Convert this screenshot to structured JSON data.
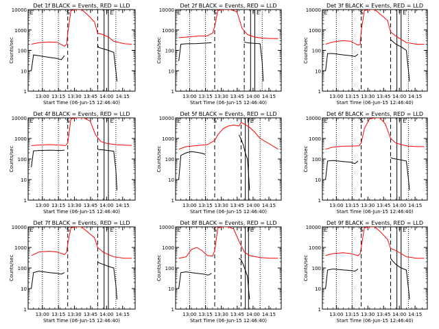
{
  "chart_data": {
    "type": "line",
    "layout": "3x3 grid of rate plots",
    "xlabel": "Start Time (06-Jun-15 12:46:40)",
    "ylabel": "Counts/sec",
    "y_scale": "log",
    "ylim": [
      1,
      10000
    ],
    "y_ticks": [
      "1",
      "10",
      "100",
      "1000",
      "10000"
    ],
    "xlim_minutes": [
      0,
      100
    ],
    "x_ticks": [
      {
        "label": "13:00",
        "min": 13.33
      },
      {
        "label": "13:15",
        "min": 28.33
      },
      {
        "label": "13:30",
        "min": 43.33
      },
      {
        "label": "13:45",
        "min": 58.33
      },
      {
        "label": "14:00",
        "min": 73.33
      },
      {
        "label": "14:15",
        "min": 88.33
      }
    ],
    "legend": "BLACK = Events, RED = LLD",
    "markers": [
      "E",
      "S",
      "F",
      "E"
    ],
    "panels": [
      {
        "title": "Det 1f BLACK = Events, RED = LLD",
        "vlines": [
          {
            "min": 13.3,
            "style": "dotted"
          },
          {
            "min": 28.3,
            "style": "dotted"
          },
          {
            "min": 37,
            "style": "dashed"
          },
          {
            "min": 65,
            "style": "dashed"
          },
          {
            "min": 71,
            "style": "solid"
          },
          {
            "min": 75,
            "style": "solid"
          },
          {
            "min": 82,
            "style": "dotted"
          }
        ],
        "lld": {
          "name": "LLD",
          "x": [
            3,
            10,
            20,
            27,
            34,
            36,
            37,
            40,
            45,
            50,
            55,
            62,
            65,
            70,
            75,
            80,
            90,
            97
          ],
          "y": [
            200,
            240,
            260,
            250,
            160,
            200,
            700,
            9000,
            10000,
            10000,
            6000,
            2500,
            700,
            600,
            450,
            280,
            210,
            200
          ]
        },
        "events": {
          "name": "Events",
          "x": [
            3,
            5,
            10,
            15,
            20,
            27,
            31,
            34
          ],
          "y": [
            10,
            60,
            55,
            50,
            45,
            40,
            35,
            55
          ],
          "x2": [
            65,
            66,
            70,
            75,
            80,
            82,
            83
          ],
          "y2": [
            180,
            140,
            120,
            100,
            80,
            10,
            3
          ]
        }
      },
      {
        "title": "Det 2f BLACK = Events, RED = LLD",
        "vlines": [
          {
            "min": 13.3,
            "style": "dotted"
          },
          {
            "min": 28.3,
            "style": "dotted"
          },
          {
            "min": 37,
            "style": "dashed"
          },
          {
            "min": 65,
            "style": "dashed"
          },
          {
            "min": 71,
            "style": "solid"
          },
          {
            "min": 75,
            "style": "solid"
          },
          {
            "min": 82,
            "style": "dotted"
          }
        ],
        "lld": {
          "name": "LLD",
          "x": [
            3,
            10,
            20,
            30,
            35,
            37,
            40,
            45,
            52,
            58,
            63,
            68,
            75,
            82,
            90,
            97
          ],
          "y": [
            420,
            450,
            500,
            520,
            700,
            1500,
            9000,
            10000,
            10000,
            8000,
            1200,
            600,
            450,
            400,
            380,
            380
          ]
        },
        "events": {
          "name": "Events",
          "x": [
            3,
            5,
            10,
            20,
            30,
            34
          ],
          "y": [
            30,
            200,
            210,
            215,
            230,
            240
          ],
          "x2": [
            65,
            66,
            70,
            75,
            80,
            82,
            83
          ],
          "y2": [
            260,
            250,
            230,
            220,
            210,
            25,
            3
          ]
        }
      },
      {
        "title": "Det 3f BLACK = Events, RED = LLD",
        "vlines": [
          {
            "min": 13.3,
            "style": "dotted"
          },
          {
            "min": 28.3,
            "style": "dotted"
          },
          {
            "min": 37,
            "style": "dashed"
          },
          {
            "min": 65,
            "style": "dashed"
          },
          {
            "min": 71,
            "style": "solid"
          },
          {
            "min": 75,
            "style": "solid"
          },
          {
            "min": 82,
            "style": "dotted"
          }
        ],
        "lld": {
          "name": "LLD",
          "x": [
            3,
            10,
            20,
            27,
            34,
            36,
            37,
            40,
            45,
            50,
            55,
            62,
            65,
            70,
            75,
            80,
            90,
            97
          ],
          "y": [
            200,
            260,
            300,
            280,
            180,
            200,
            900,
            9000,
            10000,
            10000,
            6000,
            3000,
            800,
            500,
            350,
            240,
            200,
            200
          ]
        },
        "events": {
          "name": "Events",
          "x": [
            3,
            5,
            10,
            15,
            20,
            27,
            31,
            34
          ],
          "y": [
            10,
            70,
            70,
            65,
            60,
            55,
            50,
            65
          ],
          "x2": [
            65,
            66,
            70,
            75,
            80,
            82,
            83
          ],
          "y2": [
            350,
            300,
            200,
            150,
            100,
            10,
            3
          ]
        }
      },
      {
        "title": "Det 4f BLACK = Events, RED = LLD",
        "vlines": [
          {
            "min": 13.3,
            "style": "dotted"
          },
          {
            "min": 28.3,
            "style": "dotted"
          },
          {
            "min": 37,
            "style": "dashed"
          },
          {
            "min": 65,
            "style": "dashed"
          },
          {
            "min": 71,
            "style": "solid"
          },
          {
            "min": 75,
            "style": "solid"
          },
          {
            "min": 82,
            "style": "dotted"
          }
        ],
        "lld": {
          "name": "LLD",
          "x": [
            3,
            10,
            20,
            30,
            35,
            37,
            40,
            45,
            52,
            58,
            63,
            68,
            75,
            82,
            90,
            97
          ],
          "y": [
            450,
            480,
            500,
            470,
            450,
            600,
            9000,
            10000,
            10000,
            7000,
            1500,
            700,
            550,
            500,
            470,
            460
          ]
        },
        "events": {
          "name": "Events",
          "x": [
            3,
            5,
            10,
            20,
            30,
            34
          ],
          "y": [
            40,
            250,
            260,
            270,
            260,
            270
          ],
          "x2": [
            65,
            66,
            70,
            75,
            80,
            82,
            83
          ],
          "y2": [
            300,
            290,
            280,
            260,
            240,
            30,
            3
          ]
        }
      },
      {
        "title": "Det 5f BLACK = Events, RED = LLD",
        "vlines": [
          {
            "min": 13.3,
            "style": "dotted"
          },
          {
            "min": 28.3,
            "style": "dotted"
          },
          {
            "min": 37,
            "style": "dashed"
          },
          {
            "min": 62,
            "style": "dashed"
          },
          {
            "min": 66,
            "style": "solid"
          },
          {
            "min": 69,
            "style": "solid"
          },
          {
            "min": 80,
            "style": "dotted"
          }
        ],
        "lld": {
          "name": "LLD",
          "x": [
            3,
            10,
            20,
            30,
            37,
            40,
            45,
            50,
            55,
            60,
            62,
            65,
            70,
            75,
            80,
            90,
            97
          ],
          "y": [
            300,
            400,
            450,
            500,
            800,
            1500,
            3000,
            4000,
            4500,
            4000,
            6000,
            5000,
            3500,
            2000,
            1000,
            500,
            300
          ]
        },
        "events": {
          "name": "Events",
          "x": [
            3,
            5,
            10,
            15,
            20,
            25,
            28
          ],
          "y": [
            10,
            150,
            200,
            230,
            210,
            190,
            170
          ],
          "x2": [
            60,
            62,
            64,
            66,
            68,
            69,
            70
          ],
          "y2": [
            1500,
            900,
            500,
            200,
            100,
            20,
            3
          ]
        }
      },
      {
        "title": "Det 6f BLACK = Events, RED = LLD",
        "vlines": [
          {
            "min": 13.3,
            "style": "dotted"
          },
          {
            "min": 28.3,
            "style": "dotted"
          },
          {
            "min": 37,
            "style": "dashed"
          },
          {
            "min": 65,
            "style": "dashed"
          },
          {
            "min": 71,
            "style": "solid"
          },
          {
            "min": 75,
            "style": "solid"
          },
          {
            "min": 82,
            "style": "dotted"
          }
        ],
        "lld": {
          "name": "LLD",
          "x": [
            3,
            10,
            20,
            30,
            35,
            37,
            40,
            45,
            50,
            55,
            60,
            65,
            70,
            75,
            82,
            90,
            97
          ],
          "y": [
            300,
            380,
            420,
            430,
            440,
            600,
            3000,
            9000,
            10000,
            10000,
            5000,
            1000,
            600,
            500,
            420,
            400,
            400
          ]
        },
        "events": {
          "name": "Events",
          "x": [
            3,
            5,
            10,
            15,
            20,
            27,
            31,
            34
          ],
          "y": [
            10,
            80,
            85,
            80,
            75,
            70,
            60,
            80
          ],
          "x2": [
            65,
            66,
            70,
            75,
            80,
            82,
            83
          ],
          "y2": [
            120,
            110,
            100,
            90,
            80,
            10,
            3
          ]
        }
      },
      {
        "title": "Det 7f BLACK = Events, RED = LLD",
        "vlines": [
          {
            "min": 13.3,
            "style": "dotted"
          },
          {
            "min": 28.3,
            "style": "dotted"
          },
          {
            "min": 37,
            "style": "dashed"
          },
          {
            "min": 65,
            "style": "dashed"
          },
          {
            "min": 71,
            "style": "solid"
          },
          {
            "min": 75,
            "style": "solid"
          },
          {
            "min": 82,
            "style": "dotted"
          }
        ],
        "lld": {
          "name": "LLD",
          "x": [
            3,
            10,
            20,
            27,
            34,
            36,
            37,
            40,
            45,
            50,
            55,
            62,
            65,
            70,
            75,
            80,
            90,
            97
          ],
          "y": [
            400,
            600,
            650,
            600,
            450,
            600,
            1500,
            9000,
            10000,
            10000,
            6000,
            3000,
            1000,
            600,
            450,
            350,
            300,
            300
          ]
        },
        "events": {
          "name": "Events",
          "x": [
            3,
            5,
            10,
            15,
            20,
            27,
            31,
            34
          ],
          "y": [
            10,
            60,
            70,
            65,
            60,
            55,
            50,
            60
          ],
          "x2": [
            65,
            66,
            70,
            75,
            80,
            82,
            83
          ],
          "y2": [
            200,
            180,
            150,
            120,
            100,
            15,
            3
          ]
        }
      },
      {
        "title": "Det 8f BLACK = Events, RED = LLD",
        "vlines": [
          {
            "min": 13.3,
            "style": "dotted"
          },
          {
            "min": 28.3,
            "style": "dotted"
          },
          {
            "min": 37,
            "style": "dashed"
          },
          {
            "min": 62,
            "style": "dashed"
          },
          {
            "min": 66,
            "style": "solid"
          },
          {
            "min": 69,
            "style": "solid"
          },
          {
            "min": 80,
            "style": "dotted"
          }
        ],
        "lld": {
          "name": "LLD",
          "x": [
            3,
            10,
            15,
            20,
            25,
            30,
            35,
            37,
            40,
            45,
            50,
            55,
            60,
            65,
            70,
            80,
            90,
            97
          ],
          "y": [
            300,
            350,
            800,
            1000,
            700,
            400,
            380,
            700,
            9000,
            10000,
            10000,
            8000,
            2000,
            600,
            400,
            320,
            300,
            300
          ]
        },
        "events": {
          "name": "Events",
          "x": [
            3,
            5,
            10,
            15,
            20,
            27,
            31,
            34
          ],
          "y": [
            10,
            60,
            65,
            60,
            55,
            50,
            45,
            55
          ],
          "x2": [
            60,
            62,
            64,
            66,
            68,
            69,
            70
          ],
          "y2": [
            300,
            250,
            150,
            80,
            40,
            10,
            3
          ]
        }
      },
      {
        "title": "Det 9f BLACK = Events, RED = LLD",
        "vlines": [
          {
            "min": 13.3,
            "style": "dotted"
          },
          {
            "min": 28.3,
            "style": "dotted"
          },
          {
            "min": 37,
            "style": "dashed"
          },
          {
            "min": 65,
            "style": "dashed"
          },
          {
            "min": 71,
            "style": "solid"
          },
          {
            "min": 75,
            "style": "solid"
          },
          {
            "min": 82,
            "style": "dotted"
          }
        ],
        "lld": {
          "name": "LLD",
          "x": [
            3,
            10,
            20,
            27,
            34,
            36,
            37,
            40,
            45,
            50,
            55,
            62,
            65,
            70,
            75,
            80,
            90,
            97
          ],
          "y": [
            400,
            500,
            550,
            500,
            400,
            500,
            1000,
            9000,
            10000,
            10000,
            6000,
            2500,
            900,
            700,
            500,
            350,
            300,
            300
          ]
        },
        "events": {
          "name": "Events",
          "x": [
            3,
            5,
            10,
            15,
            20,
            27,
            31,
            34
          ],
          "y": [
            10,
            80,
            90,
            85,
            80,
            75,
            70,
            90
          ],
          "x2": [
            65,
            66,
            70,
            75,
            80,
            82,
            83
          ],
          "y2": [
            300,
            250,
            150,
            100,
            80,
            10,
            3
          ]
        }
      }
    ]
  }
}
